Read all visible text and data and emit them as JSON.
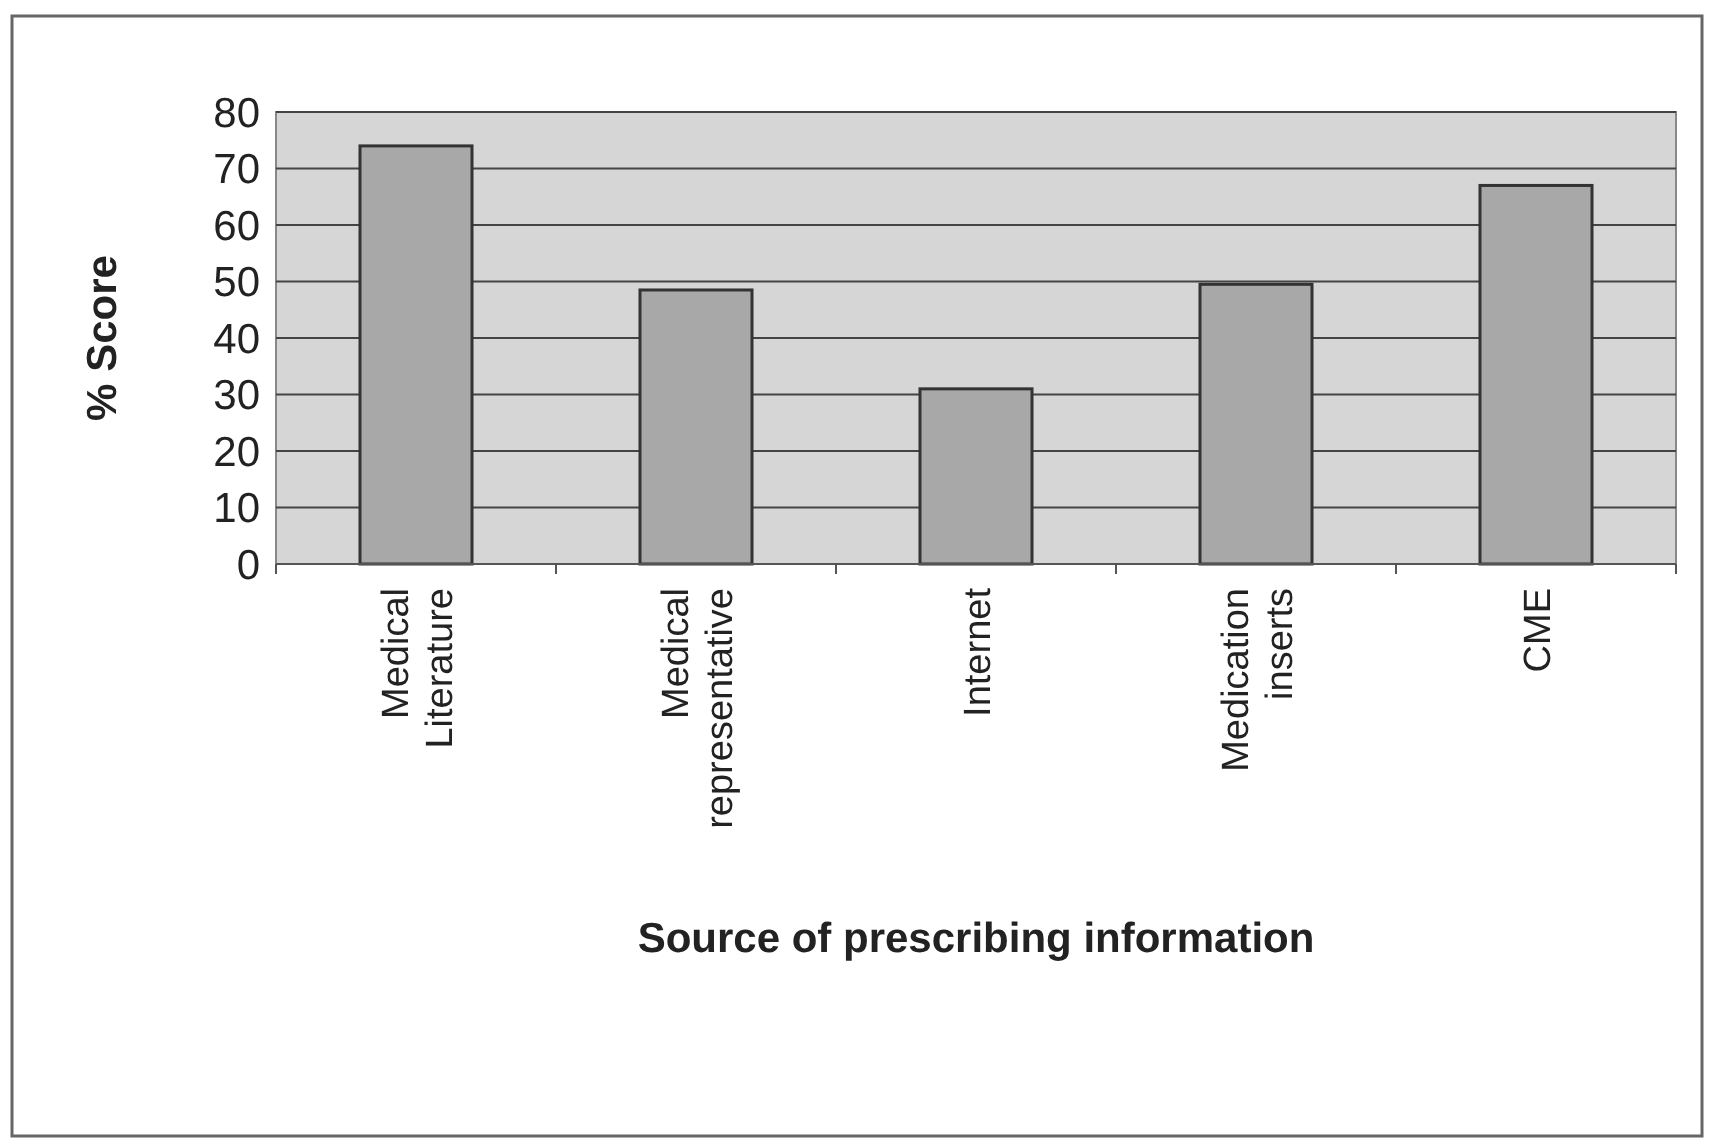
{
  "chart_data": {
    "type": "bar",
    "xlabel": "Source of prescribing information",
    "ylabel": "% Score",
    "categories": [
      "Medical Literature",
      "Medical representative",
      "Internet",
      "Medication inserts",
      "CME"
    ],
    "values": [
      74,
      48.5,
      31,
      49.5,
      67
    ],
    "color": "#a8a8a8",
    "ylim": [
      0,
      80
    ],
    "yticks": [
      0,
      10,
      20,
      30,
      40,
      50,
      60,
      70,
      80
    ],
    "grid": "y"
  }
}
